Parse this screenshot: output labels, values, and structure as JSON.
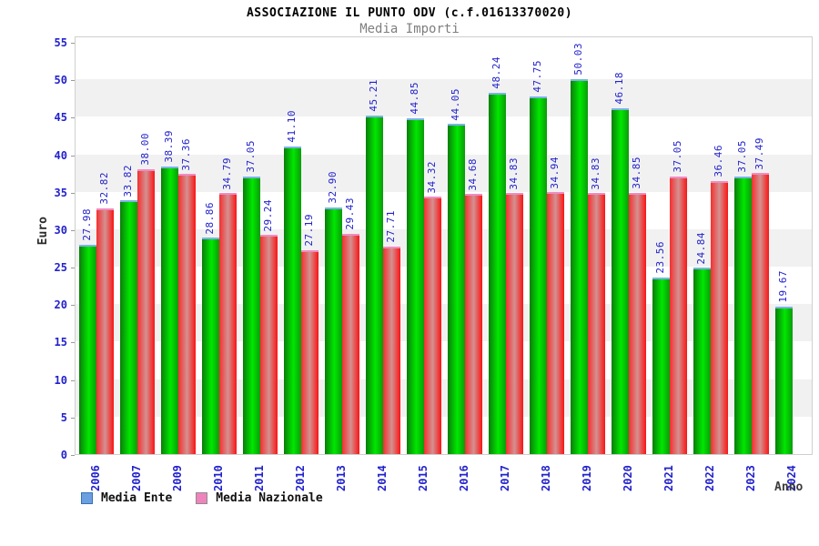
{
  "header": {
    "title": "ASSOCIAZIONE IL PUNTO ODV (c.f.01613370020)",
    "subtitle": "Media Importi"
  },
  "axes": {
    "y_label": "Euro",
    "x_label": "Anno",
    "y_ticks": [
      0,
      5,
      10,
      15,
      20,
      25,
      30,
      35,
      40,
      45,
      50,
      55
    ]
  },
  "legend": {
    "items": [
      {
        "label": "Media Ente",
        "swatch_color": "#6c9fe0"
      },
      {
        "label": "Media Nazionale",
        "swatch_color": "#ef84bd"
      }
    ]
  },
  "colors": {
    "bar_ente": "#00cc00",
    "bar_ente_cap": "#7db2e8",
    "bar_nazionale": "#ee2222",
    "bar_nazionale_cap": "#f08cc2",
    "axis_text": "#2222cc",
    "band_gray": "#f1f1f1"
  },
  "chart_data": {
    "type": "bar",
    "title": "ASSOCIAZIONE IL PUNTO ODV (c.f.01613370020)",
    "subtitle": "Media Importi",
    "xlabel": "Anno",
    "ylabel": "Euro",
    "ylim": [
      0,
      55
    ],
    "grid": "horizontal-bands-every-5",
    "legend_position": "bottom-left",
    "categories": [
      "2006",
      "2007",
      "2009",
      "2010",
      "2011",
      "2012",
      "2013",
      "2014",
      "2015",
      "2016",
      "2017",
      "2018",
      "2019",
      "2020",
      "2021",
      "2022",
      "2023",
      "2024"
    ],
    "series": [
      {
        "name": "Media Ente",
        "color": "#00cc00",
        "values": [
          27.98,
          33.82,
          38.39,
          28.86,
          37.05,
          41.1,
          32.9,
          45.21,
          44.85,
          44.05,
          48.24,
          47.75,
          50.03,
          46.18,
          23.56,
          24.84,
          37.05,
          19.67
        ]
      },
      {
        "name": "Media Nazionale",
        "color": "#ee2222",
        "values": [
          32.82,
          38.0,
          37.36,
          34.79,
          29.24,
          27.19,
          29.43,
          27.71,
          34.32,
          34.68,
          34.83,
          34.94,
          34.83,
          34.85,
          37.05,
          36.46,
          37.49,
          null
        ]
      }
    ]
  }
}
